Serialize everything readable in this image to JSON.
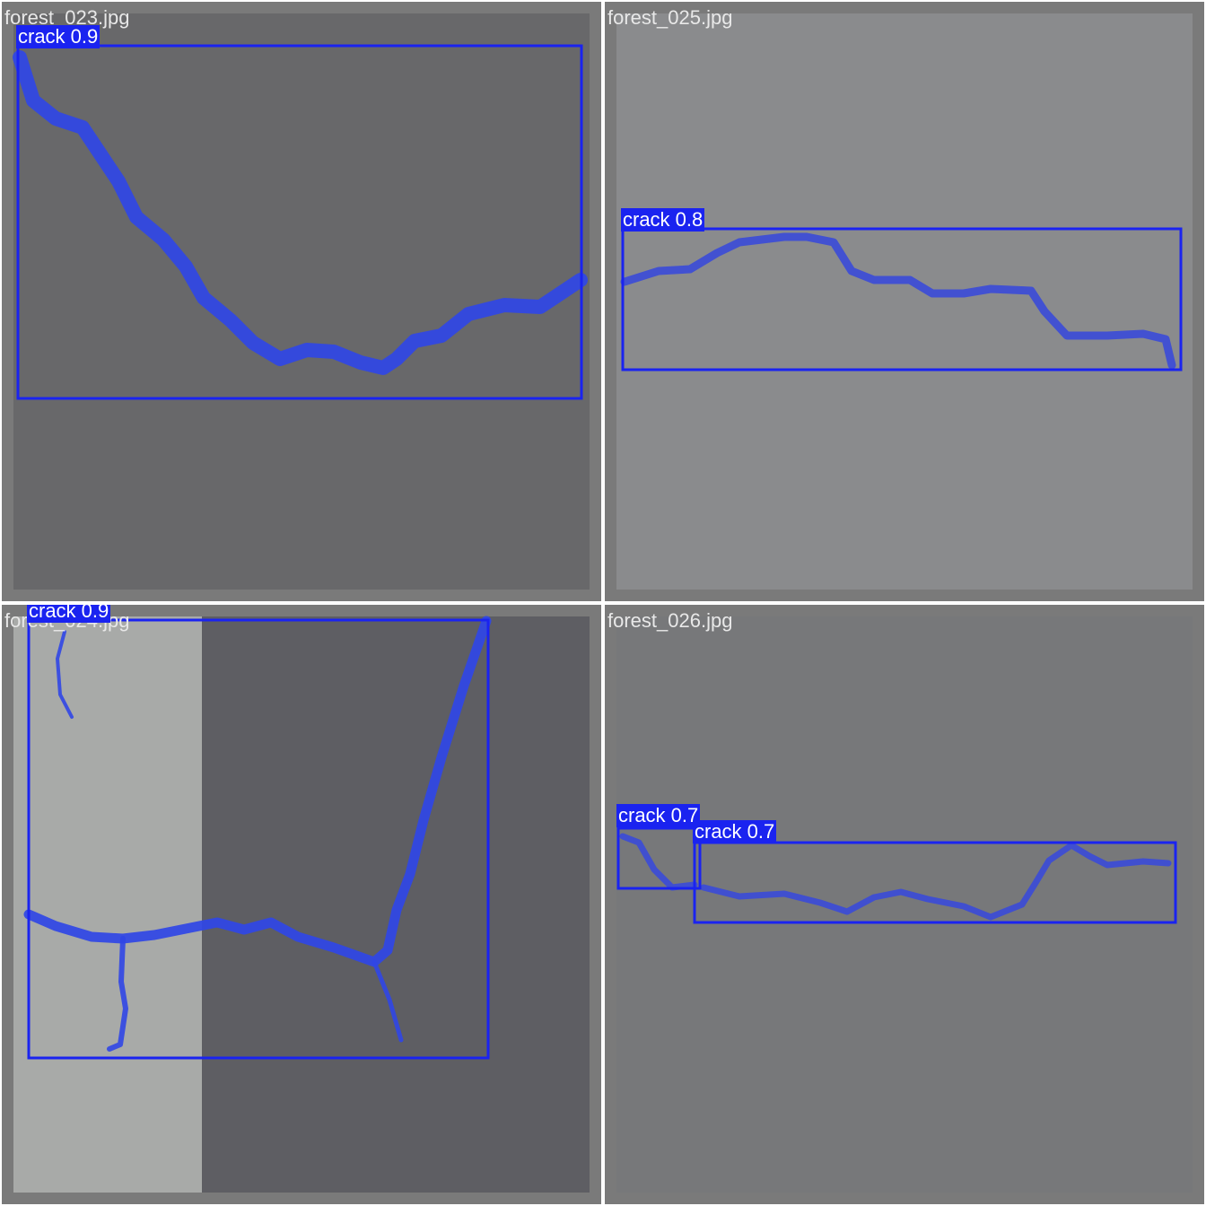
{
  "colors": {
    "box": "#1a23f0",
    "mask": "#2f43e8",
    "label_bg": "#1a23f0",
    "label_fg": "#ffffff",
    "tile_border": "#7a7a7a"
  },
  "tiles": [
    {
      "filename": "forest_023.jpg",
      "detections": [
        {
          "label": "crack 0.9"
        }
      ]
    },
    {
      "filename": "forest_025.jpg",
      "detections": [
        {
          "label": "crack 0.8"
        }
      ]
    },
    {
      "filename": "forest_024.jpg",
      "detections": [
        {
          "label": "crack 0.9"
        }
      ]
    },
    {
      "filename": "forest_026.jpg",
      "detections": [
        {
          "label": "crack 0.7"
        },
        {
          "label": "crack 0.7"
        }
      ]
    }
  ]
}
